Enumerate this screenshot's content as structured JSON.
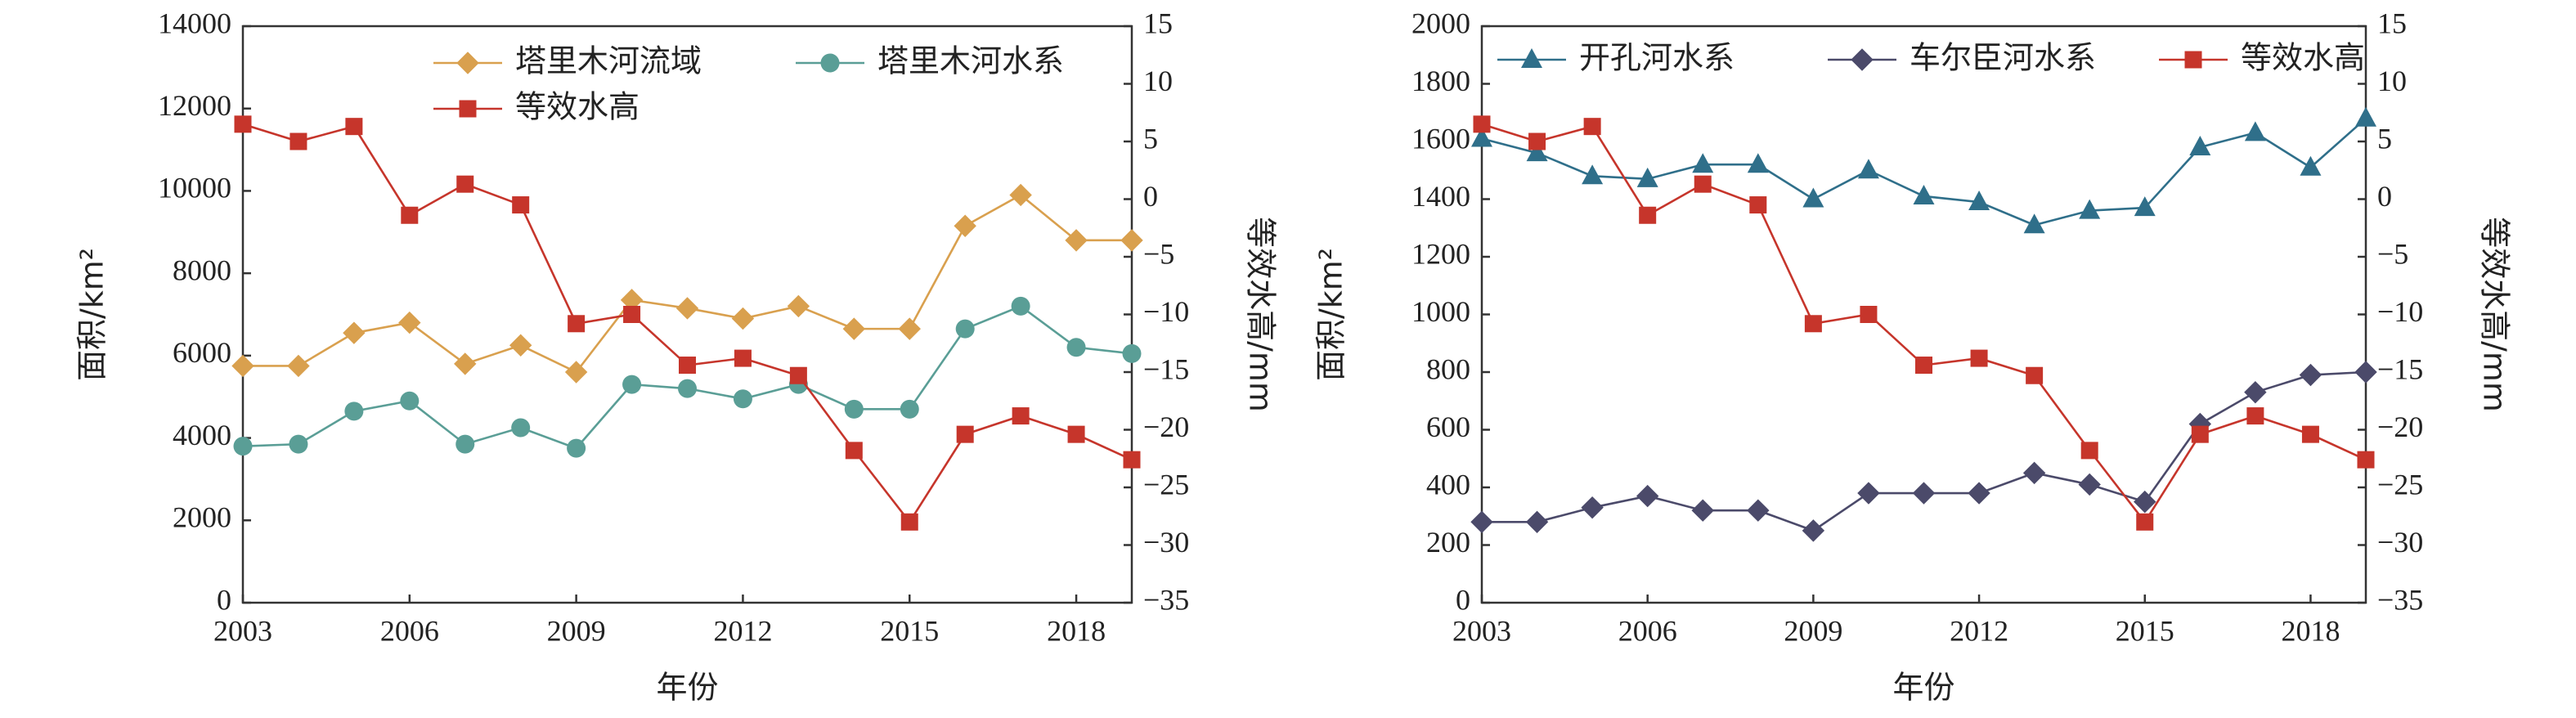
{
  "chart_data": [
    {
      "type": "line",
      "x": [
        2003,
        2004,
        2005,
        2006,
        2007,
        2008,
        2009,
        2010,
        2011,
        2012,
        2013,
        2014,
        2015,
        2016,
        2017,
        2018,
        2019
      ],
      "xlim": [
        2003,
        2019
      ],
      "xticks": [
        2003,
        2006,
        2009,
        2012,
        2015,
        2018
      ],
      "xlabel": "年份",
      "ylabel": "面积/km²",
      "ylim": [
        0,
        14000
      ],
      "yticks": [
        0,
        2000,
        4000,
        6000,
        8000,
        10000,
        12000,
        14000
      ],
      "y2label": "等效水高/mm",
      "y2lim": [
        -35,
        15
      ],
      "y2ticks": [
        -35,
        -30,
        -25,
        -20,
        -15,
        -10,
        -5,
        0,
        5,
        10,
        15
      ],
      "legend": "top-right",
      "series": [
        {
          "name": "塔里木河流域",
          "axis": "left",
          "color": "#d9a04e",
          "marker": "diamond",
          "values": [
            5750,
            5750,
            6550,
            6800,
            5800,
            6250,
            5600,
            7350,
            7150,
            6900,
            7200,
            6650,
            6650,
            9150,
            9900,
            8800,
            8800
          ]
        },
        {
          "name": "塔里木河水系",
          "axis": "left",
          "color": "#5a9e96",
          "marker": "circle",
          "values": [
            3800,
            3850,
            4650,
            4900,
            3850,
            4250,
            3750,
            5300,
            5200,
            4950,
            5300,
            4700,
            4700,
            6650,
            7200,
            6200,
            6050
          ]
        },
        {
          "name": "等效水高",
          "axis": "right",
          "color": "#c6352b",
          "marker": "square",
          "values": [
            6.5,
            5.0,
            6.3,
            -1.4,
            1.3,
            -0.5,
            -10.8,
            -10.0,
            -14.4,
            -13.8,
            -15.3,
            -21.8,
            -28.0,
            -20.4,
            -18.8,
            -20.4,
            -22.6
          ]
        }
      ]
    },
    {
      "type": "line",
      "x": [
        2003,
        2004,
        2005,
        2006,
        2007,
        2008,
        2009,
        2010,
        2011,
        2012,
        2013,
        2014,
        2015,
        2016,
        2017,
        2018,
        2019
      ],
      "xlim": [
        2003,
        2019
      ],
      "xticks": [
        2003,
        2006,
        2009,
        2012,
        2015,
        2018
      ],
      "xlabel": "年份",
      "ylabel": "面积/km²",
      "ylim": [
        0,
        2000
      ],
      "yticks": [
        0,
        200,
        400,
        600,
        800,
        1000,
        1200,
        1400,
        1600,
        1800,
        2000
      ],
      "y2label": "等效水高/mm",
      "y2lim": [
        -35,
        15
      ],
      "y2ticks": [
        -35,
        -30,
        -25,
        -20,
        -15,
        -10,
        -5,
        0,
        5,
        10,
        15
      ],
      "legend": "top",
      "series": [
        {
          "name": "开孔河水系",
          "axis": "left",
          "color": "#2f6f8a",
          "marker": "triangle",
          "values": [
            1610,
            1560,
            1480,
            1470,
            1520,
            1520,
            1400,
            1500,
            1410,
            1390,
            1310,
            1360,
            1370,
            1580,
            1630,
            1510,
            1680
          ]
        },
        {
          "name": "车尔臣河水系",
          "axis": "left",
          "color": "#4b4a6a",
          "marker": "diamond",
          "values": [
            280,
            280,
            330,
            370,
            320,
            320,
            250,
            380,
            380,
            380,
            450,
            410,
            350,
            620,
            730,
            790,
            800
          ]
        },
        {
          "name": "等效水高",
          "axis": "right",
          "color": "#c6352b",
          "marker": "square",
          "values": [
            6.5,
            5.0,
            6.3,
            -1.4,
            1.3,
            -0.5,
            -10.8,
            -10.0,
            -14.4,
            -13.8,
            -15.3,
            -21.8,
            -28.0,
            -20.4,
            -18.8,
            -20.4,
            -22.6
          ]
        }
      ]
    }
  ]
}
